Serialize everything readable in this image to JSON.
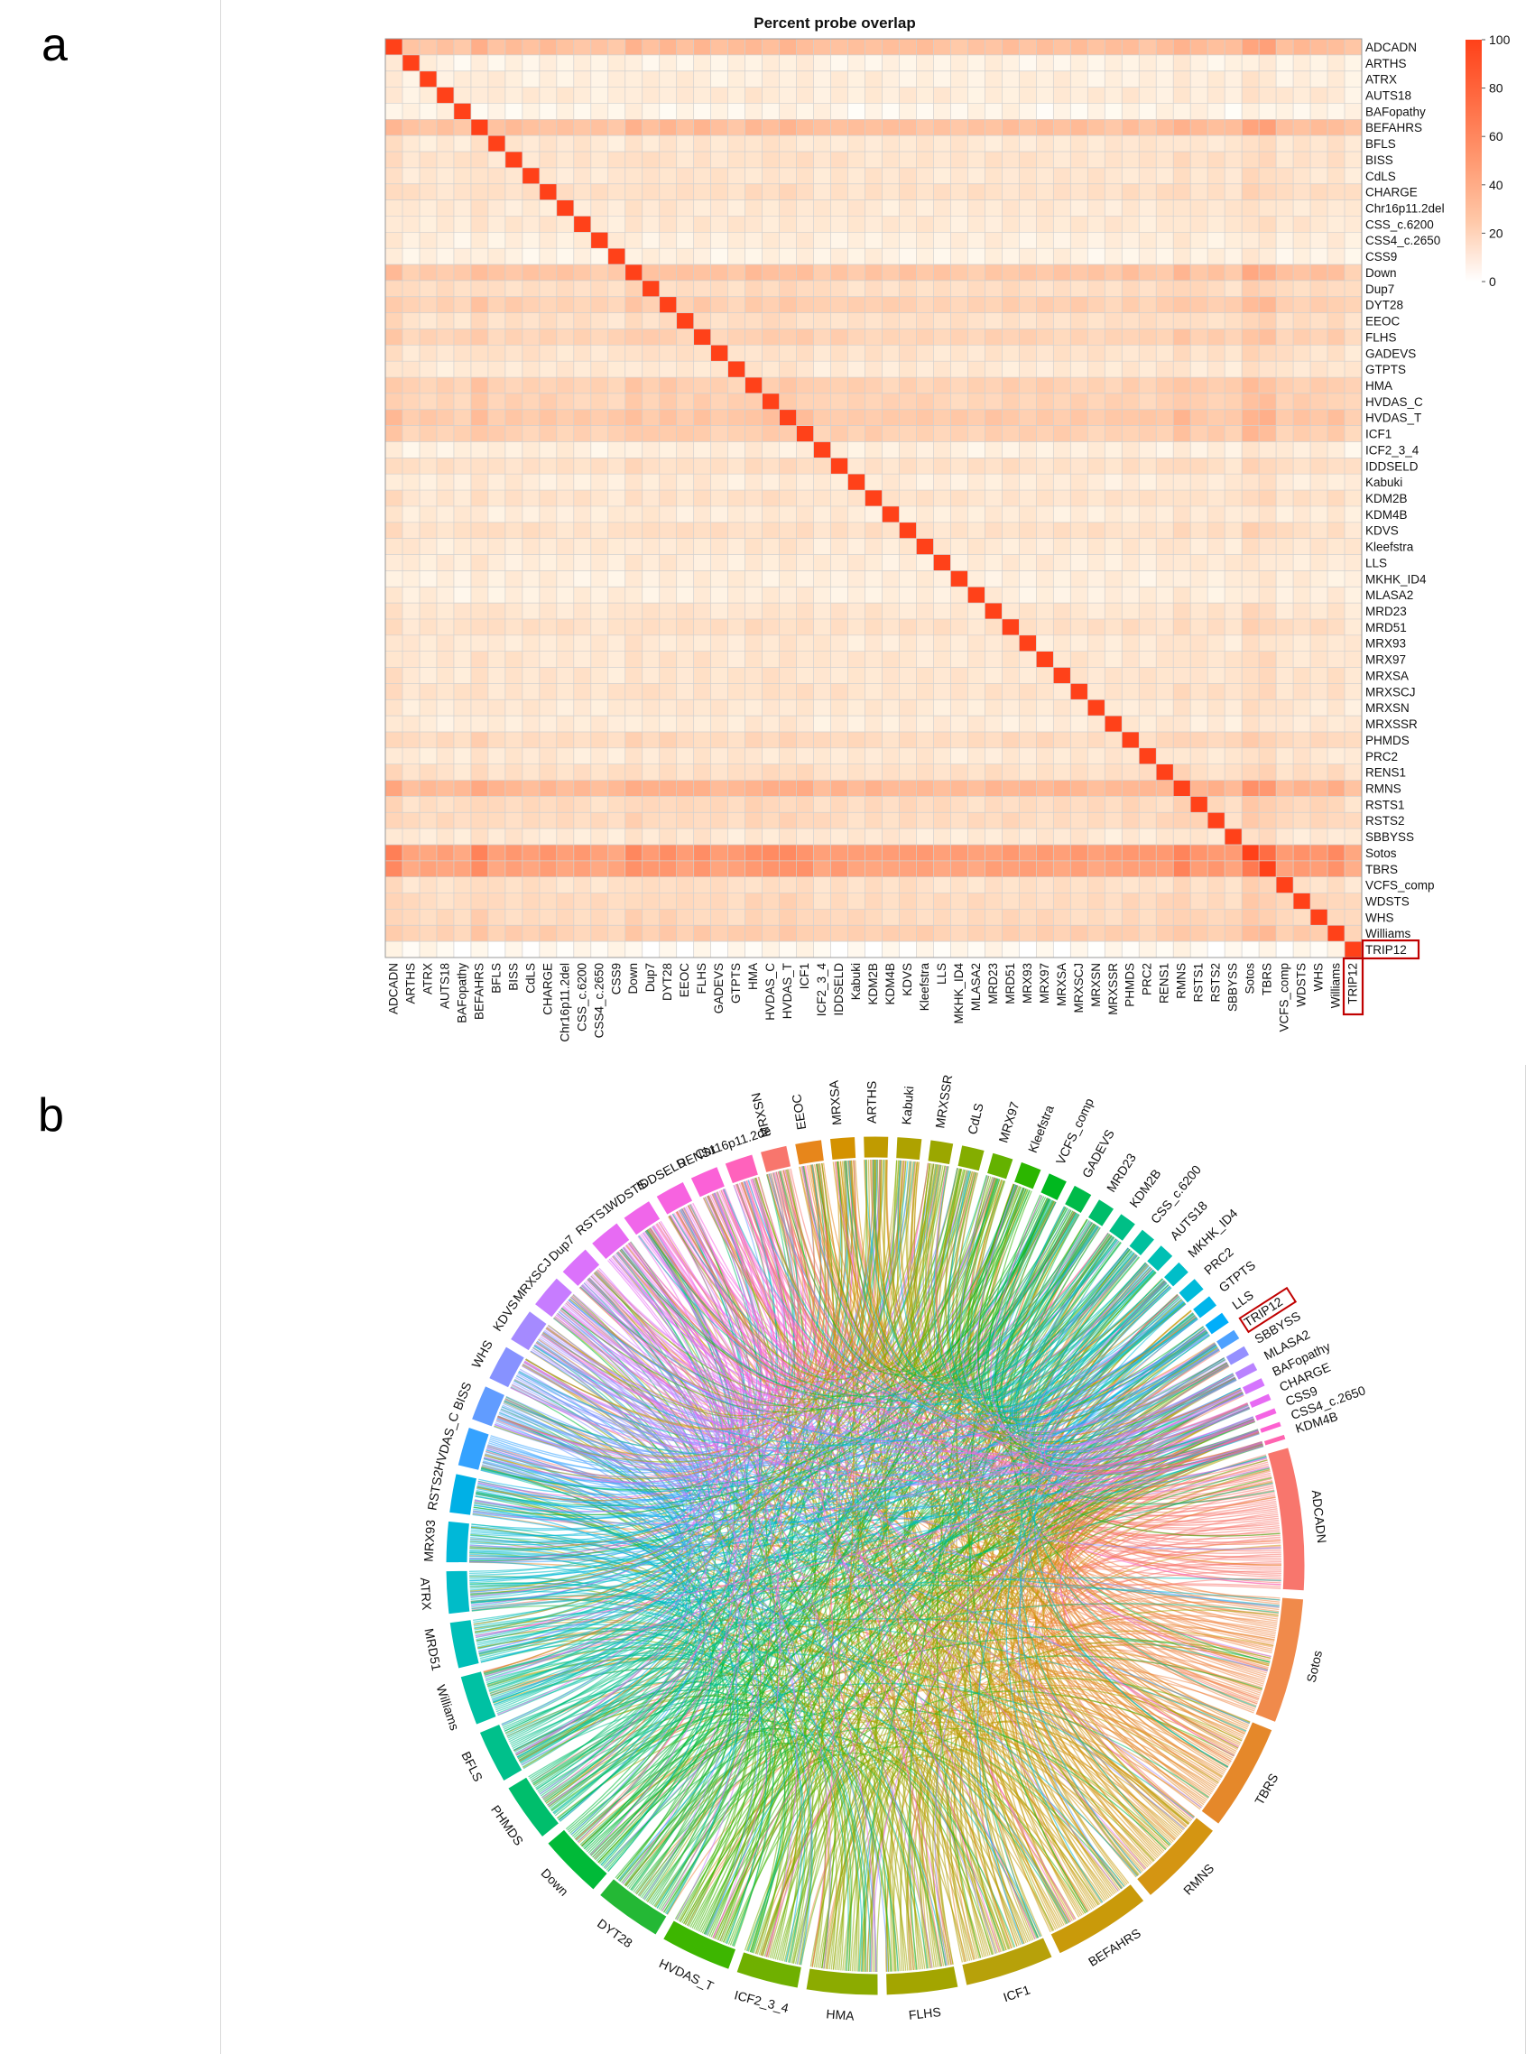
{
  "panel_a_letter": "a",
  "panel_b_letter": "b",
  "colors": {
    "heat_low": "#ffffff",
    "heat_high": "#ff1a1a",
    "highlight": "#c00000",
    "grid": "#d0d0d0"
  },
  "highlight_label": "TRIP12",
  "chart_data": [
    {
      "type": "heatmap",
      "title": "Percent probe overlap",
      "labels": [
        "ADCADN",
        "ARTHS",
        "ATRX",
        "AUTS18",
        "BAFopathy",
        "BEFAHRS",
        "BFLS",
        "BISS",
        "CdLS",
        "CHARGE",
        "Chr16p11.2del",
        "CSS_c.6200",
        "CSS4_c.2650",
        "CSS9",
        "Down",
        "Dup7",
        "DYT28",
        "EEOC",
        "FLHS",
        "GADEVS",
        "GTPTS",
        "HMA",
        "HVDAS_C",
        "HVDAS_T",
        "ICF1",
        "ICF2_3_4",
        "IDDSELD",
        "Kabuki",
        "KDM2B",
        "KDM4B",
        "KDVS",
        "Kleefstra",
        "LLS",
        "MKHK_ID4",
        "MLASA2",
        "MRD23",
        "MRD51",
        "MRX93",
        "MRX97",
        "MRXSA",
        "MRXSCJ",
        "MRXSN",
        "MRXSSR",
        "PHMDS",
        "PRC2",
        "RENS1",
        "RMNS",
        "RSTS1",
        "RSTS2",
        "SBBYSS",
        "Sotos",
        "TBRS",
        "VCFS_comp",
        "WDSTS",
        "WHS",
        "Williams",
        "TRIP12"
      ],
      "row_levels": [
        45,
        8,
        10,
        12,
        6,
        45,
        15,
        18,
        16,
        20,
        14,
        14,
        10,
        8,
        40,
        22,
        32,
        20,
        30,
        18,
        14,
        32,
        30,
        38,
        32,
        10,
        20,
        12,
        18,
        12,
        20,
        14,
        12,
        10,
        10,
        16,
        20,
        14,
        16,
        16,
        18,
        14,
        12,
        24,
        14,
        20,
        52,
        24,
        24,
        14,
        75,
        70,
        20,
        24,
        25,
        32,
        3
      ],
      "diagonal": 100,
      "colorbar": {
        "min": 0,
        "max": 100,
        "ticks": [
          0,
          20,
          40,
          60,
          80,
          100
        ]
      }
    },
    {
      "type": "chord",
      "segments": [
        {
          "name": "ADCADN",
          "size": 8.0,
          "color": "#F8766D"
        },
        {
          "name": "Sotos",
          "size": 7.0,
          "color": "#F08A4B"
        },
        {
          "name": "TBRS",
          "size": 6.0,
          "color": "#E5882A"
        },
        {
          "name": "RMNS",
          "size": 5.0,
          "color": "#D49512"
        },
        {
          "name": "BEFAHRS",
          "size": 5.5,
          "color": "#C99A0A"
        },
        {
          "name": "ICF1",
          "size": 5.0,
          "color": "#B7A10A"
        },
        {
          "name": "FLHS",
          "size": 4.0,
          "color": "#A3A500"
        },
        {
          "name": "HMA",
          "size": 4.0,
          "color": "#8CAB00"
        },
        {
          "name": "ICF2_3_4",
          "size": 3.5,
          "color": "#6FB000"
        },
        {
          "name": "HVDAS_T",
          "size": 4.0,
          "color": "#3DB600"
        },
        {
          "name": "DYT28",
          "size": 3.8,
          "color": "#24B835"
        },
        {
          "name": "Down",
          "size": 3.6,
          "color": "#00BA38"
        },
        {
          "name": "PHMDS",
          "size": 3.3,
          "color": "#00BE6C"
        },
        {
          "name": "BFLS",
          "size": 3.0,
          "color": "#00C08B"
        },
        {
          "name": "Williams",
          "size": 2.8,
          "color": "#00C1A3"
        },
        {
          "name": "MRD51",
          "size": 2.6,
          "color": "#00BFB8"
        },
        {
          "name": "ATRX",
          "size": 2.4,
          "color": "#00BCC8"
        },
        {
          "name": "MRX93",
          "size": 2.3,
          "color": "#00B8D8"
        },
        {
          "name": "RSTS2",
          "size": 2.2,
          "color": "#00B0E6"
        },
        {
          "name": "HVDAS_C",
          "size": 2.2,
          "color": "#35A2FF"
        },
        {
          "name": "BISS",
          "size": 2.0,
          "color": "#619CFF"
        },
        {
          "name": "WHS",
          "size": 2.0,
          "color": "#8792FF"
        },
        {
          "name": "KDVS",
          "size": 1.9,
          "color": "#A58AFF"
        },
        {
          "name": "MRXSCJ",
          "size": 1.9,
          "color": "#C77CFF"
        },
        {
          "name": "Dup7",
          "size": 1.8,
          "color": "#DB72FB"
        },
        {
          "name": "RSTS1",
          "size": 1.8,
          "color": "#E76BF3"
        },
        {
          "name": "WDSTS",
          "size": 1.7,
          "color": "#F066EA"
        },
        {
          "name": "IDDSELD",
          "size": 1.7,
          "color": "#F763E0"
        },
        {
          "name": "RENS1",
          "size": 1.6,
          "color": "#FB61D7"
        },
        {
          "name": "Chr16p11.2de",
          "size": 1.6,
          "color": "#FF62BC"
        },
        {
          "name": "MRXSN",
          "size": 1.5,
          "color": "#F8766D"
        },
        {
          "name": "EEOC",
          "size": 1.5,
          "color": "#E7861B"
        },
        {
          "name": "MRXSA",
          "size": 1.4,
          "color": "#D49200"
        },
        {
          "name": "ARTHS",
          "size": 1.4,
          "color": "#C09B00"
        },
        {
          "name": "Kabuki",
          "size": 1.4,
          "color": "#AEA200"
        },
        {
          "name": "MRXSSR",
          "size": 1.3,
          "color": "#9BA700"
        },
        {
          "name": "CdLS",
          "size": 1.3,
          "color": "#84AD00"
        },
        {
          "name": "MRX97",
          "size": 1.2,
          "color": "#64B200"
        },
        {
          "name": "Kleefstra",
          "size": 1.2,
          "color": "#2CB600"
        },
        {
          "name": "VCFS_comp",
          "size": 1.1,
          "color": "#00B81F"
        },
        {
          "name": "GADEVS",
          "size": 1.1,
          "color": "#00BB49"
        },
        {
          "name": "MRD23",
          "size": 1.0,
          "color": "#00BD6A"
        },
        {
          "name": "KDM2B",
          "size": 1.0,
          "color": "#00BF86"
        },
        {
          "name": "CSS_c.6200",
          "size": 0.9,
          "color": "#00C09E"
        },
        {
          "name": "AUTS18",
          "size": 0.9,
          "color": "#00C0B4"
        },
        {
          "name": "MKHK_ID4",
          "size": 0.8,
          "color": "#00BEC8"
        },
        {
          "name": "PRC2",
          "size": 0.8,
          "color": "#00BBDA"
        },
        {
          "name": "GTPTS",
          "size": 0.7,
          "color": "#00B6EB"
        },
        {
          "name": "LLS",
          "size": 0.7,
          "color": "#00AEFA"
        },
        {
          "name": "TRIP12",
          "size": 0.6,
          "color": "#4DA1FF"
        },
        {
          "name": "SBBYSS",
          "size": 0.6,
          "color": "#9590FF"
        },
        {
          "name": "MLASA2",
          "size": 0.5,
          "color": "#B983FF"
        },
        {
          "name": "BAFopathy",
          "size": 0.5,
          "color": "#D575FE"
        },
        {
          "name": "CHARGE",
          "size": 0.4,
          "color": "#E76BF3"
        },
        {
          "name": "CSS9",
          "size": 0.35,
          "color": "#F464E4"
        },
        {
          "name": "CSS4_c.2650",
          "size": 0.3,
          "color": "#FD61D1"
        },
        {
          "name": "KDM4B",
          "size": 0.3,
          "color": "#FF64B0"
        }
      ]
    }
  ]
}
